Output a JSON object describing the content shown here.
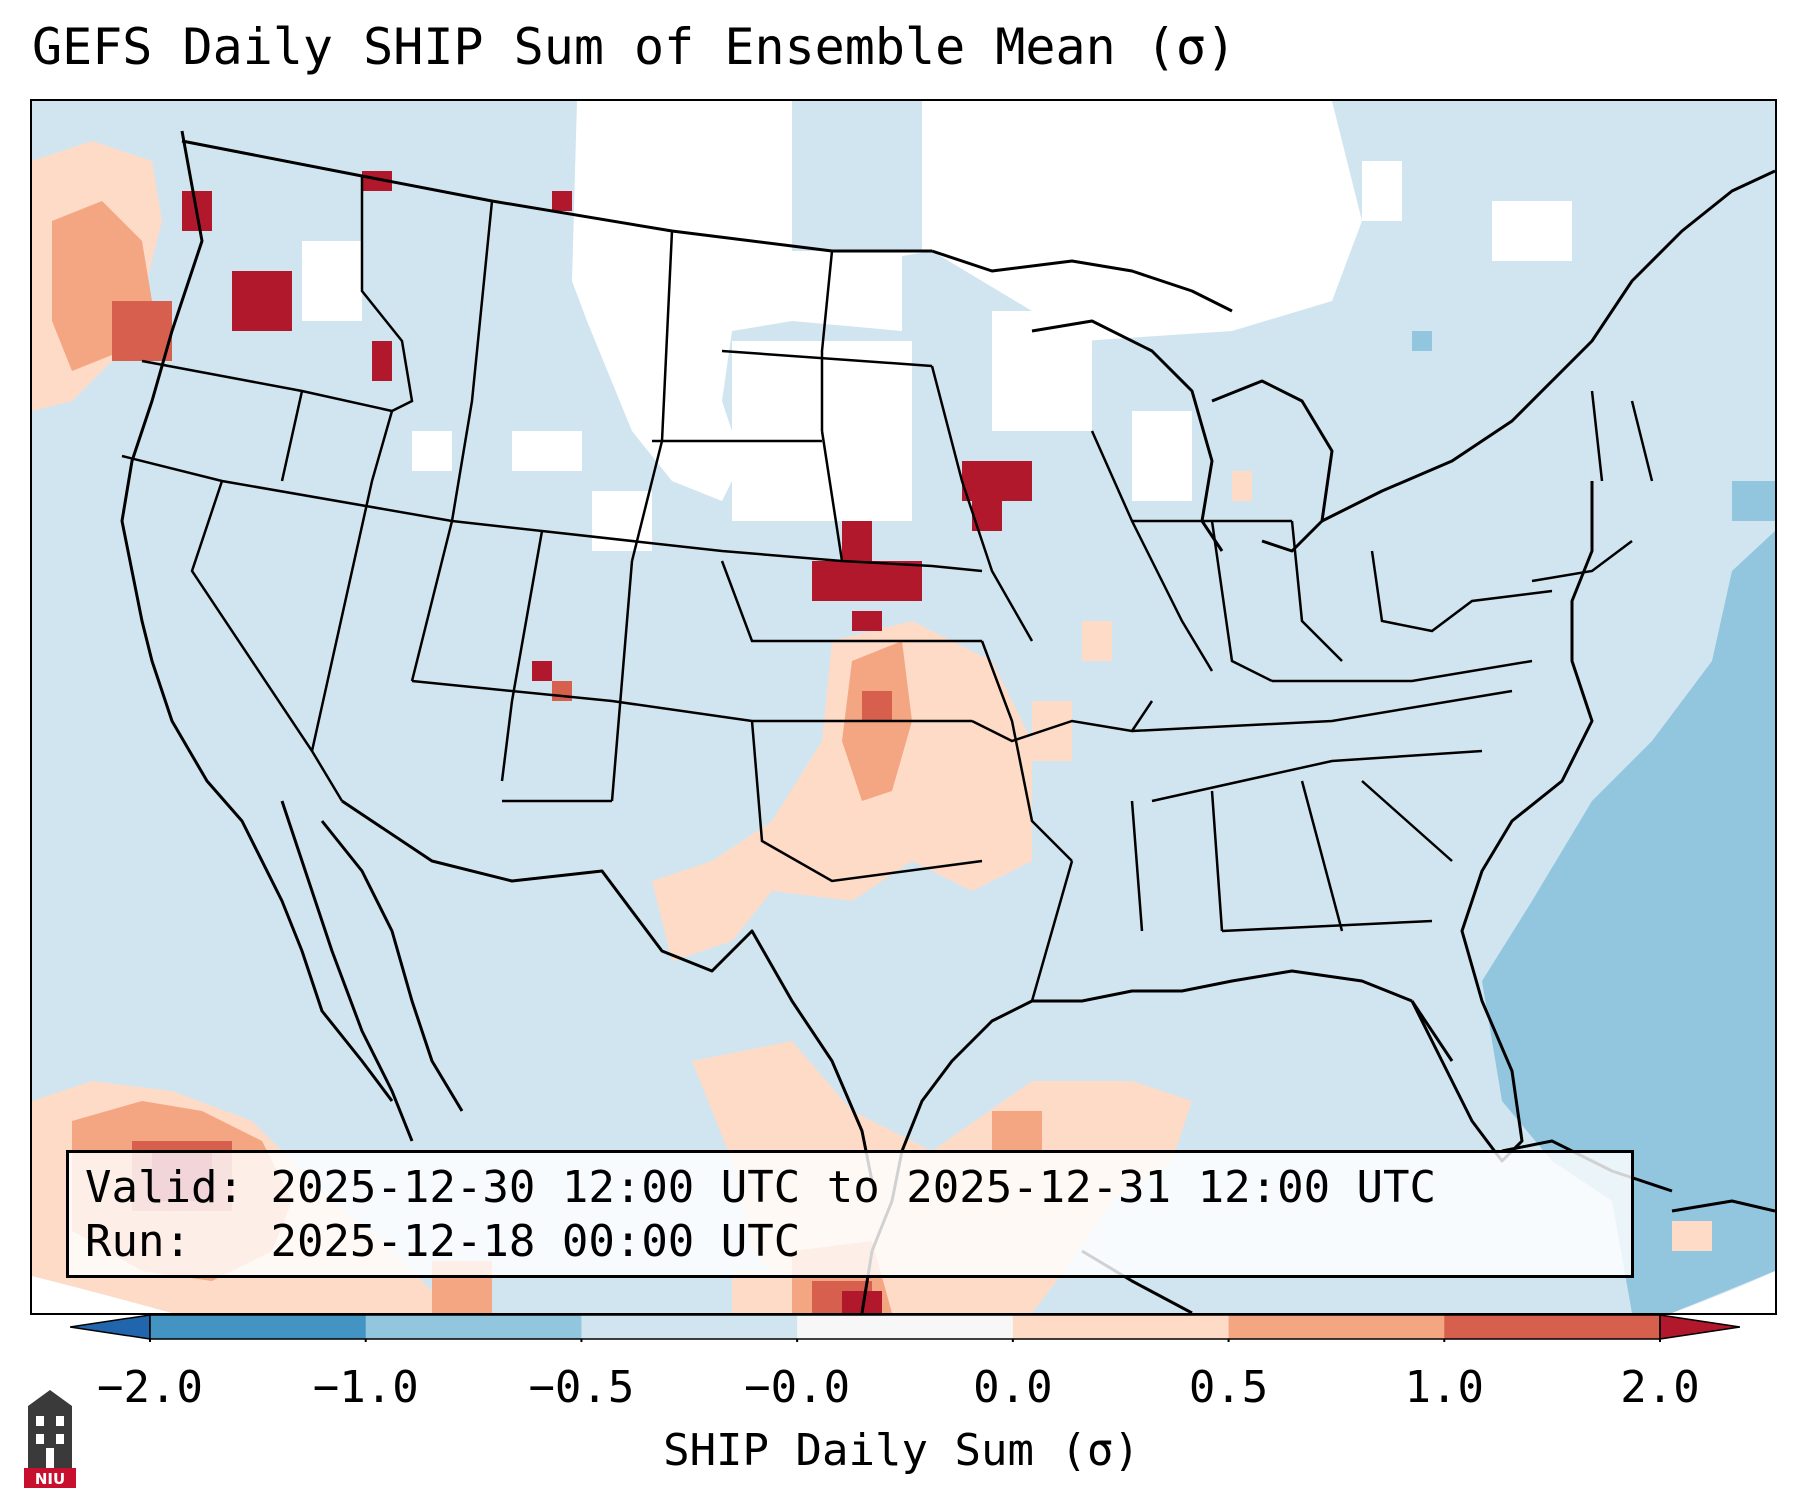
{
  "title": "GEFS Daily SHIP Sum of Ensemble Mean (σ)",
  "info": {
    "valid_label": "Valid:",
    "valid_value": "2025-12-30 12:00 UTC to 2025-12-31 12:00 UTC",
    "run_label": "Run:",
    "run_value": "2025-12-18 00:00 UTC"
  },
  "colorbar": {
    "label": "SHIP Daily Sum (σ)",
    "ticks": [
      "−2.0",
      "−1.0",
      "−0.5",
      "−0.0",
      "0.0",
      "0.5",
      "1.0",
      "2.0"
    ],
    "bins": [
      {
        "range": [
          -2.0,
          -1.0
        ],
        "color": "#4393c3"
      },
      {
        "range": [
          -1.0,
          -0.5
        ],
        "color": "#92c5de"
      },
      {
        "range": [
          -0.5,
          -0.0
        ],
        "color": "#d1e5f0"
      },
      {
        "range": [
          -0.0,
          0.0
        ],
        "color": "#f7f7f7"
      },
      {
        "range": [
          0.0,
          0.5
        ],
        "color": "#fddbc7"
      },
      {
        "range": [
          0.5,
          1.0
        ],
        "color": "#f4a582"
      },
      {
        "range": [
          1.0,
          2.0
        ],
        "color": "#d6604d"
      }
    ],
    "extend_low_color": "#2166ac",
    "extend_high_color": "#b2182b"
  },
  "map": {
    "background_color": "#d1e5f0",
    "outline_color": "#000000"
  },
  "logo": {
    "text": "NIU",
    "icon": "university-tower-icon"
  }
}
